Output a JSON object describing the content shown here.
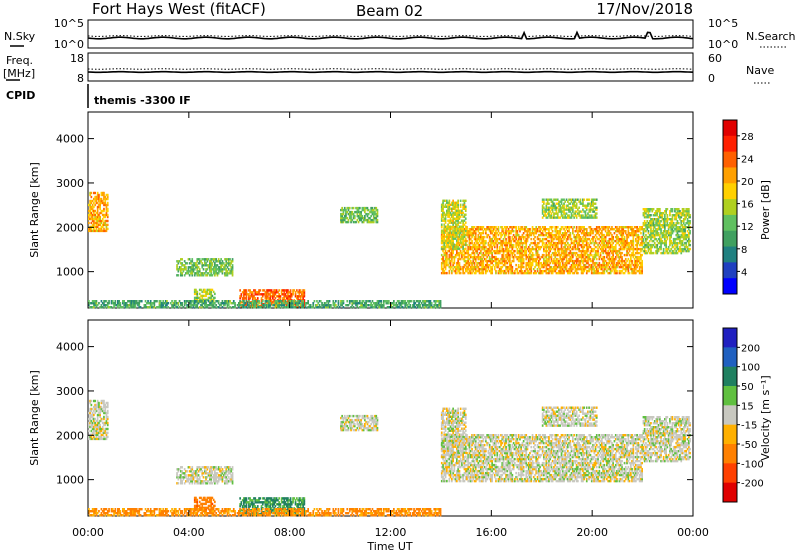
{
  "header": {
    "station": "Fort Hays West (fitACF)",
    "beam": "Beam 02",
    "date": "17/Nov/2018"
  },
  "summary_panels": {
    "nsky_label": "N.Sky",
    "nsearch_label": "N.Search",
    "count_ticks": [
      "10^5",
      "10^0"
    ],
    "freq_label_1": "Freq.",
    "freq_label_2": "[MHz]",
    "freq_ticks": [
      "18",
      "8"
    ],
    "nave_label": "Nave",
    "nave_ticks": [
      "60",
      "0"
    ],
    "cpid_label": "CPID",
    "cpid_text": "themis -3300 IF"
  },
  "colors": {
    "power_scale": [
      "#0000ff",
      "#2040c0",
      "#208080",
      "#40a060",
      "#60c060",
      "#b0d020",
      "#ffd000",
      "#ffa000",
      "#ff6000",
      "#ff2000",
      "#e00000"
    ],
    "velocity_scale": [
      "#2020c0",
      "#2060c0",
      "#208060",
      "#60c040",
      "#c8c8c0",
      "#ffb000",
      "#ff8000",
      "#ff4000",
      "#e00000"
    ]
  },
  "chart_data": [
    {
      "type": "heatmap",
      "name": "power-panel",
      "ylabel": "Slant Range [km]",
      "xlabel": "",
      "xlim": [
        0,
        24
      ],
      "ylim": [
        180,
        4600
      ],
      "yticks": [
        1000,
        2000,
        3000,
        4000
      ],
      "xticks": [
        0,
        4,
        8,
        12,
        16,
        20,
        24
      ],
      "colorbar": {
        "label": "Power [dB]",
        "ticks": [
          "4",
          "8",
          "12",
          "16",
          "20",
          "24",
          "28"
        ],
        "range": [
          0,
          30
        ]
      },
      "regions": [
        {
          "t0": 0.0,
          "t1": 0.8,
          "r0": 1900,
          "r1": 2800,
          "v": 20
        },
        {
          "t0": 3.5,
          "t1": 5.7,
          "r0": 900,
          "r1": 1300,
          "v": 12
        },
        {
          "t0": 4.2,
          "t1": 5.0,
          "r0": 300,
          "r1": 600,
          "v": 14
        },
        {
          "t0": 6.0,
          "t1": 8.6,
          "r0": 200,
          "r1": 600,
          "v": 24
        },
        {
          "t0": 10.0,
          "t1": 11.5,
          "r0": 2100,
          "r1": 2450,
          "v": 12
        },
        {
          "t0": 14.0,
          "t1": 22.0,
          "r0": 950,
          "r1": 2000,
          "v": 20
        },
        {
          "t0": 14.0,
          "t1": 15.0,
          "r0": 1500,
          "r1": 2600,
          "v": 16
        },
        {
          "t0": 18.0,
          "t1": 20.2,
          "r0": 2200,
          "r1": 2650,
          "v": 14
        },
        {
          "t0": 22.0,
          "t1": 23.9,
          "r0": 1400,
          "r1": 2400,
          "v": 14
        },
        {
          "t0": 0.0,
          "t1": 14.0,
          "r0": 180,
          "r1": 330,
          "v": 10
        }
      ]
    },
    {
      "type": "heatmap",
      "name": "velocity-panel",
      "ylabel": "Slant Range [km]",
      "xlabel": "Time UT",
      "xlim": [
        0,
        24
      ],
      "ylim": [
        180,
        4600
      ],
      "yticks": [
        1000,
        2000,
        3000,
        4000
      ],
      "xticks": [
        0,
        4,
        8,
        12,
        16,
        20,
        24
      ],
      "xtick_labels": [
        "00:00",
        "04:00",
        "08:00",
        "12:00",
        "16:00",
        "20:00",
        "00:00"
      ],
      "colorbar": {
        "label": "Velocity [m s⁻¹]",
        "ticks": [
          "200",
          "100",
          "50",
          "15",
          "-15",
          "-50",
          "-100",
          "-200"
        ],
        "range": [
          -250,
          250
        ]
      },
      "regions": [
        {
          "t0": 0.0,
          "t1": 0.8,
          "r0": 1900,
          "r1": 2800,
          "v": 0
        },
        {
          "t0": 3.5,
          "t1": 5.7,
          "r0": 900,
          "r1": 1300,
          "v": 0
        },
        {
          "t0": 4.2,
          "t1": 5.0,
          "r0": 300,
          "r1": 600,
          "v": -80
        },
        {
          "t0": 6.0,
          "t1": 8.6,
          "r0": 200,
          "r1": 600,
          "v": 40
        },
        {
          "t0": 10.0,
          "t1": 11.5,
          "r0": 2100,
          "r1": 2450,
          "v": 0
        },
        {
          "t0": 14.0,
          "t1": 22.0,
          "r0": 950,
          "r1": 2000,
          "v": 0
        },
        {
          "t0": 14.0,
          "t1": 15.0,
          "r0": 1500,
          "r1": 2600,
          "v": 0
        },
        {
          "t0": 18.0,
          "t1": 20.2,
          "r0": 2200,
          "r1": 2650,
          "v": 0
        },
        {
          "t0": 22.0,
          "t1": 23.9,
          "r0": 1400,
          "r1": 2400,
          "v": 0
        },
        {
          "t0": 0.0,
          "t1": 14.0,
          "r0": 180,
          "r1": 330,
          "v": -60
        }
      ]
    }
  ]
}
